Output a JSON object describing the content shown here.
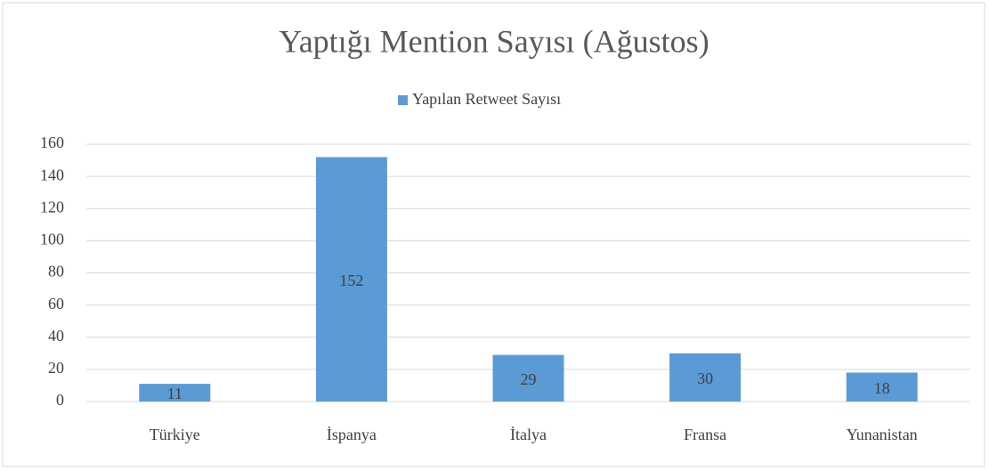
{
  "chart_data": {
    "type": "bar",
    "title": "Yaptığı Mention Sayısı (Ağustos)",
    "categories": [
      "Türkiye",
      "İspanya",
      "İtalya",
      "Fransa",
      "Yunanistan"
    ],
    "series": [
      {
        "name": "Yapılan Retweet Sayısı",
        "color": "#5b9bd5",
        "values": [
          11,
          152,
          29,
          30,
          18
        ]
      }
    ],
    "ylim": [
      0,
      160
    ],
    "yticks": [
      0,
      20,
      40,
      60,
      80,
      100,
      120,
      140,
      160
    ],
    "grid": true,
    "legend": "top"
  }
}
